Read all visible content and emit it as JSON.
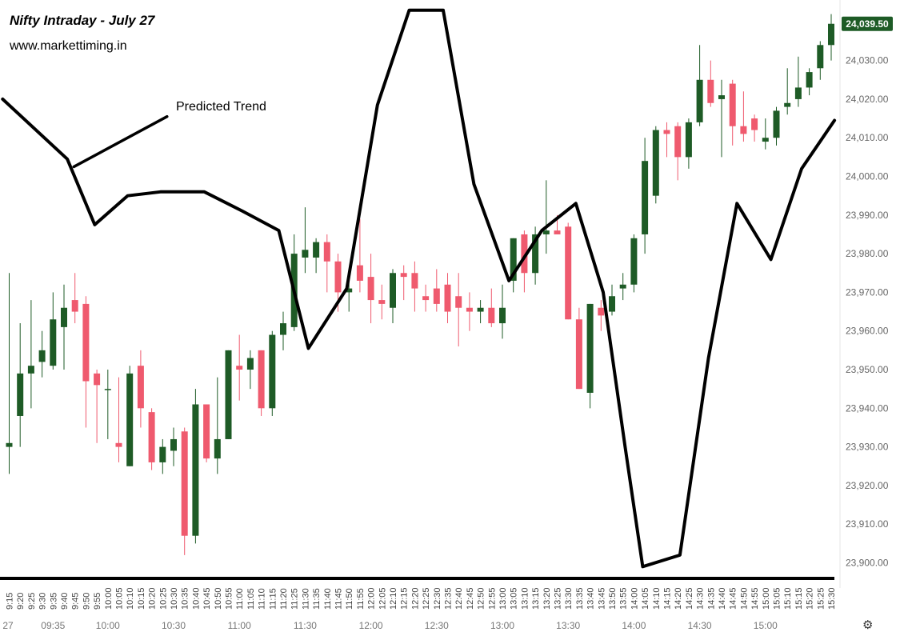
{
  "header": {
    "title": "Nifty Intraday - July 27",
    "website": "www.markettiming.in"
  },
  "annotation": {
    "predicted_trend_label": "Predicted Trend"
  },
  "settings_icon": "gear-icon",
  "chart_data": {
    "type": "candlestick",
    "title": "Nifty Intraday - July 27",
    "y_axis": {
      "ticks": [
        23900,
        23910,
        23920,
        23930,
        23940,
        23950,
        23960,
        23970,
        23980,
        23990,
        24000,
        24010,
        24020,
        24030
      ],
      "tick_labels": [
        "23,900.00",
        "23,910.00",
        "23,920.00",
        "23,930.00",
        "23,940.00",
        "23,950.00",
        "23,960.00",
        "23,970.00",
        "23,980.00",
        "23,990.00",
        "24,000.00",
        "24,010.00",
        "24,020.00",
        "24,030.00"
      ],
      "range": [
        23897,
        24044
      ],
      "last_price_label": "24,039.50",
      "last_price": 24039.5
    },
    "x_axis": {
      "time_labels": [
        "9:15",
        "9:20",
        "9:25",
        "9:30",
        "9:35",
        "9:40",
        "9:45",
        "9:50",
        "9:55",
        "10:00",
        "10:05",
        "10:10",
        "10:15",
        "10:20",
        "10:25",
        "10:30",
        "10:35",
        "10:40",
        "10:45",
        "10:50",
        "10:55",
        "11:00",
        "11:05",
        "11:10",
        "11:15",
        "11:20",
        "11:25",
        "11:30",
        "11:35",
        "11:40",
        "11:45",
        "11:50",
        "11:55",
        "12:00",
        "12:05",
        "12:10",
        "12:15",
        "12:20",
        "12:25",
        "12:30",
        "12:35",
        "12:40",
        "12:45",
        "12:50",
        "12:55",
        "13:00",
        "13:05",
        "13:10",
        "13:15",
        "13:20",
        "13:25",
        "13:30",
        "13:35",
        "13:40",
        "13:45",
        "13:50",
        "13:55",
        "14:00",
        "14:05",
        "14:10",
        "14:15",
        "14:20",
        "14:25",
        "14:30",
        "14:35",
        "14:40",
        "14:45",
        "14:50",
        "14:55",
        "15:00",
        "15:05",
        "15:10",
        "15:15",
        "15:20",
        "15:25",
        "15:30"
      ],
      "bottom_labels": [
        {
          "text": "27",
          "slot": -0.5
        },
        {
          "text": "09:35",
          "slot": 4
        },
        {
          "text": "10:00",
          "slot": 9
        },
        {
          "text": "10:30",
          "slot": 15
        },
        {
          "text": "11:00",
          "slot": 21
        },
        {
          "text": "11:30",
          "slot": 27
        },
        {
          "text": "12:00",
          "slot": 33
        },
        {
          "text": "12:30",
          "slot": 39
        },
        {
          "text": "13:00",
          "slot": 45
        },
        {
          "text": "13:30",
          "slot": 51
        },
        {
          "text": "14:00",
          "slot": 57
        },
        {
          "text": "14:30",
          "slot": 63
        },
        {
          "text": "15:00",
          "slot": 69
        }
      ]
    },
    "colors": {
      "up": "#1e5b26",
      "down": "#ef5a6e",
      "trend": "#000000",
      "price_tag": "#1e5b26"
    },
    "candles": [
      {
        "t": "9:15",
        "o": 23930,
        "h": 23975,
        "l": 23923,
        "c": 23931
      },
      {
        "t": "9:20",
        "o": 23938,
        "h": 23962,
        "l": 23930,
        "c": 23949
      },
      {
        "t": "9:25",
        "o": 23949,
        "h": 23968,
        "l": 23940,
        "c": 23951
      },
      {
        "t": "9:30",
        "o": 23952,
        "h": 23960,
        "l": 23948,
        "c": 23955
      },
      {
        "t": "9:35",
        "o": 23951,
        "h": 23970,
        "l": 23950,
        "c": 23963
      },
      {
        "t": "9:40",
        "o": 23961,
        "h": 23972,
        "l": 23950,
        "c": 23966
      },
      {
        "t": "9:45",
        "o": 23968,
        "h": 23975,
        "l": 23962,
        "c": 23965
      },
      {
        "t": "9:50",
        "o": 23967,
        "h": 23969,
        "l": 23935,
        "c": 23947
      },
      {
        "t": "9:55",
        "o": 23949,
        "h": 23950,
        "l": 23931,
        "c": 23946
      },
      {
        "t": "10:00",
        "o": 23945,
        "h": 23950,
        "l": 23932,
        "c": 23945
      },
      {
        "t": "10:05",
        "o": 23931,
        "h": 23948,
        "l": 23926,
        "c": 23930
      },
      {
        "t": "10:10",
        "o": 23925,
        "h": 23951,
        "l": 23925,
        "c": 23949
      },
      {
        "t": "10:15",
        "o": 23951,
        "h": 23955,
        "l": 23935,
        "c": 23940
      },
      {
        "t": "10:20",
        "o": 23939,
        "h": 23940,
        "l": 23924,
        "c": 23926
      },
      {
        "t": "10:25",
        "o": 23926,
        "h": 23932,
        "l": 23923,
        "c": 23930
      },
      {
        "t": "10:30",
        "o": 23929,
        "h": 23935,
        "l": 23925,
        "c": 23932
      },
      {
        "t": "10:35",
        "o": 23934,
        "h": 23935,
        "l": 23902,
        "c": 23907
      },
      {
        "t": "10:40",
        "o": 23907,
        "h": 23945,
        "l": 23905,
        "c": 23941
      },
      {
        "t": "10:45",
        "o": 23941,
        "h": 23941,
        "l": 23926,
        "c": 23927
      },
      {
        "t": "10:50",
        "o": 23927,
        "h": 23948,
        "l": 23923,
        "c": 23932
      },
      {
        "t": "10:55",
        "o": 23932,
        "h": 23955,
        "l": 23932,
        "c": 23955
      },
      {
        "t": "11:00",
        "o": 23951,
        "h": 23959,
        "l": 23942,
        "c": 23950
      },
      {
        "t": "11:05",
        "o": 23950,
        "h": 23955,
        "l": 23945,
        "c": 23953
      },
      {
        "t": "11:10",
        "o": 23955,
        "h": 23955,
        "l": 23938,
        "c": 23940
      },
      {
        "t": "11:15",
        "o": 23940,
        "h": 23960,
        "l": 23938,
        "c": 23959
      },
      {
        "t": "11:20",
        "o": 23959,
        "h": 23965,
        "l": 23955,
        "c": 23962
      },
      {
        "t": "11:25",
        "o": 23961,
        "h": 23985,
        "l": 23960,
        "c": 23980
      },
      {
        "t": "11:30",
        "o": 23979,
        "h": 23992,
        "l": 23975,
        "c": 23981
      },
      {
        "t": "11:35",
        "o": 23979,
        "h": 23984,
        "l": 23975,
        "c": 23983
      },
      {
        "t": "11:40",
        "o": 23983,
        "h": 23985,
        "l": 23970,
        "c": 23978
      },
      {
        "t": "11:45",
        "o": 23978,
        "h": 23980,
        "l": 23965,
        "c": 23970
      },
      {
        "t": "11:50",
        "o": 23970,
        "h": 23975,
        "l": 23965,
        "c": 23971
      },
      {
        "t": "11:55",
        "o": 23977,
        "h": 23989,
        "l": 23970,
        "c": 23973
      },
      {
        "t": "12:00",
        "o": 23974,
        "h": 23980,
        "l": 23962,
        "c": 23968
      },
      {
        "t": "12:05",
        "o": 23968,
        "h": 23972,
        "l": 23963,
        "c": 23967
      },
      {
        "t": "12:10",
        "o": 23966,
        "h": 23976,
        "l": 23962,
        "c": 23975
      },
      {
        "t": "12:15",
        "o": 23975,
        "h": 23977,
        "l": 23968,
        "c": 23974
      },
      {
        "t": "12:20",
        "o": 23975,
        "h": 23978,
        "l": 23965,
        "c": 23971
      },
      {
        "t": "12:25",
        "o": 23969,
        "h": 23972,
        "l": 23965,
        "c": 23968
      },
      {
        "t": "12:30",
        "o": 23971,
        "h": 23976,
        "l": 23965,
        "c": 23967
      },
      {
        "t": "12:35",
        "o": 23972,
        "h": 23975,
        "l": 23962,
        "c": 23965
      },
      {
        "t": "12:40",
        "o": 23969,
        "h": 23975,
        "l": 23956,
        "c": 23966
      },
      {
        "t": "12:45",
        "o": 23966,
        "h": 23970,
        "l": 23960,
        "c": 23965
      },
      {
        "t": "12:50",
        "o": 23965,
        "h": 23968,
        "l": 23962,
        "c": 23966
      },
      {
        "t": "12:55",
        "o": 23966,
        "h": 23971,
        "l": 23961,
        "c": 23962
      },
      {
        "t": "13:00",
        "o": 23962,
        "h": 23972,
        "l": 23958,
        "c": 23966
      },
      {
        "t": "13:05",
        "o": 23973,
        "h": 23984,
        "l": 23970,
        "c": 23984
      },
      {
        "t": "13:10",
        "o": 23985,
        "h": 23986,
        "l": 23970,
        "c": 23975
      },
      {
        "t": "13:15",
        "o": 23975,
        "h": 23987,
        "l": 23972,
        "c": 23985
      },
      {
        "t": "13:20",
        "o": 23985,
        "h": 23999,
        "l": 23980,
        "c": 23986
      },
      {
        "t": "13:25",
        "o": 23986,
        "h": 23990,
        "l": 23985,
        "c": 23985
      },
      {
        "t": "13:30",
        "o": 23987,
        "h": 23988,
        "l": 23963,
        "c": 23963
      },
      {
        "t": "13:35",
        "o": 23963,
        "h": 23966,
        "l": 23945,
        "c": 23945
      },
      {
        "t": "13:40",
        "o": 23944,
        "h": 23967,
        "l": 23940,
        "c": 23967
      },
      {
        "t": "13:45",
        "o": 23966,
        "h": 23968,
        "l": 23960,
        "c": 23964
      },
      {
        "t": "13:50",
        "o": 23965,
        "h": 23972,
        "l": 23964,
        "c": 23969
      },
      {
        "t": "13:55",
        "o": 23971,
        "h": 23975,
        "l": 23968,
        "c": 23972
      },
      {
        "t": "14:00",
        "o": 23972,
        "h": 23985,
        "l": 23970,
        "c": 23984
      },
      {
        "t": "14:05",
        "o": 23985,
        "h": 24010,
        "l": 23980,
        "c": 24004
      },
      {
        "t": "14:10",
        "o": 23995,
        "h": 24013,
        "l": 23993,
        "c": 24012
      },
      {
        "t": "14:15",
        "o": 24012,
        "h": 24014,
        "l": 24005,
        "c": 24011
      },
      {
        "t": "14:20",
        "o": 24013,
        "h": 24014,
        "l": 23999,
        "c": 24005
      },
      {
        "t": "14:25",
        "o": 24005,
        "h": 24015,
        "l": 24002,
        "c": 24014
      },
      {
        "t": "14:30",
        "o": 24014,
        "h": 24034,
        "l": 24013,
        "c": 24025
      },
      {
        "t": "14:35",
        "o": 24025,
        "h": 24030,
        "l": 24018,
        "c": 24019
      },
      {
        "t": "14:40",
        "o": 24020,
        "h": 24025,
        "l": 24005,
        "c": 24021
      },
      {
        "t": "14:45",
        "o": 24024,
        "h": 24025,
        "l": 24008,
        "c": 24013
      },
      {
        "t": "14:50",
        "o": 24013,
        "h": 24022,
        "l": 24009,
        "c": 24011
      },
      {
        "t": "14:55",
        "o": 24015,
        "h": 24016,
        "l": 24009,
        "c": 24012
      },
      {
        "t": "15:00",
        "o": 24009,
        "h": 24015,
        "l": 24007,
        "c": 24010
      },
      {
        "t": "15:05",
        "o": 24010,
        "h": 24018,
        "l": 24008,
        "c": 24017
      },
      {
        "t": "15:10",
        "o": 24018,
        "h": 24028,
        "l": 24016,
        "c": 24019
      },
      {
        "t": "15:15",
        "o": 24020,
        "h": 24031,
        "l": 24018,
        "c": 24023
      },
      {
        "t": "15:20",
        "o": 24023,
        "h": 24028,
        "l": 24021,
        "c": 24027
      },
      {
        "t": "15:25",
        "o": 24028,
        "h": 24035,
        "l": 24025,
        "c": 24034
      },
      {
        "t": "15:30",
        "o": 24034,
        "h": 24042,
        "l": 24030,
        "c": 24039.5
      }
    ],
    "predicted_trend": [
      {
        "slot": -0.6,
        "y": 24020
      },
      {
        "slot": 5.3,
        "y": 24004.5
      },
      {
        "slot": 7.8,
        "y": 23987.5
      },
      {
        "slot": 10.8,
        "y": 23995
      },
      {
        "slot": 13.8,
        "y": 23996
      },
      {
        "slot": 17.8,
        "y": 23996
      },
      {
        "slot": 21.3,
        "y": 23991
      },
      {
        "slot": 24.6,
        "y": 23986
      },
      {
        "slot": 27.3,
        "y": 23955.5
      },
      {
        "slot": 30.8,
        "y": 23971
      },
      {
        "slot": 33.6,
        "y": 24018.5
      },
      {
        "slot": 36.5,
        "y": 24043
      },
      {
        "slot": 39.6,
        "y": 24043
      },
      {
        "slot": 42.4,
        "y": 23998
      },
      {
        "slot": 45.6,
        "y": 23973
      },
      {
        "slot": 48.6,
        "y": 23986
      },
      {
        "slot": 51.7,
        "y": 23993
      },
      {
        "slot": 54.2,
        "y": 23970
      },
      {
        "slot": 56.2,
        "y": 23930
      },
      {
        "slot": 57.8,
        "y": 23899
      },
      {
        "slot": 61.2,
        "y": 23902
      },
      {
        "slot": 63.8,
        "y": 23953
      },
      {
        "slot": 66.4,
        "y": 23993
      },
      {
        "slot": 69.5,
        "y": 23978.5
      },
      {
        "slot": 72.3,
        "y": 24002
      },
      {
        "slot": 75.3,
        "y": 24014.5
      }
    ],
    "annotation_line": [
      {
        "slot": 5.9,
        "y": 24002.5
      },
      {
        "slot": 14.4,
        "y": 24015.5
      }
    ]
  }
}
